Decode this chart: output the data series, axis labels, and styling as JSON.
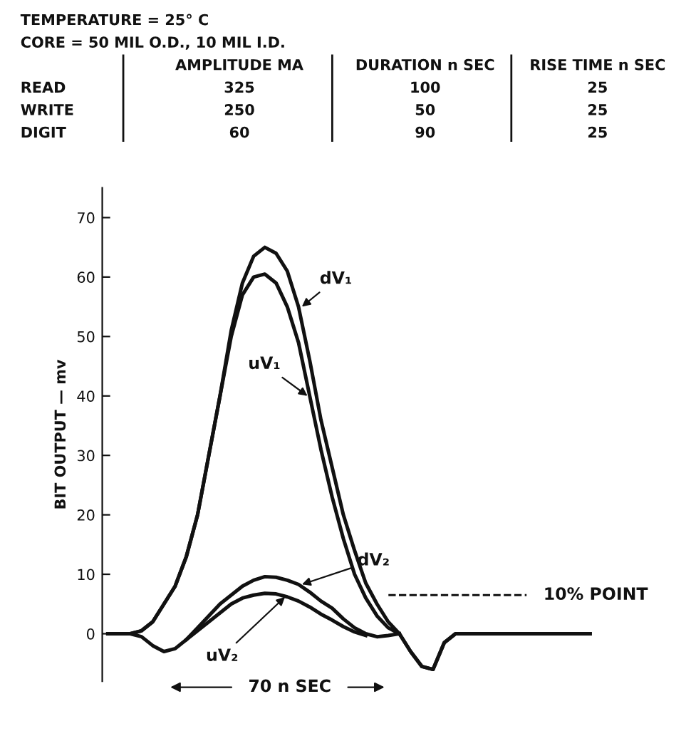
{
  "chart_data": [
    {
      "type": "other",
      "annotations": [
        "TEMPERATURE = 25° C",
        "CORE = 50 MIL O.D., 10 MIL I.D."
      ],
      "categories": [
        "READ",
        "WRITE",
        "DIGIT"
      ],
      "data_labels": true,
      "series": [
        {
          "name": "AMPLITUDE MA",
          "values": [
            325,
            250,
            60
          ]
        },
        {
          "name": "DURATION n SEC",
          "values": [
            100,
            50,
            90
          ]
        },
        {
          "name": "RISE TIME n SEC",
          "values": [
            25,
            25,
            25
          ]
        }
      ]
    },
    {
      "type": "line",
      "ylabel": "BIT OUTPUT — mv",
      "ylim": [
        -8,
        75
      ],
      "yticks": [
        0,
        10,
        20,
        30,
        40,
        50,
        60,
        70
      ],
      "tick_labels": "y",
      "grid": false,
      "legend": false,
      "marker": "none",
      "line_style": "solid",
      "annotations": [
        "70 n SEC"
      ],
      "ref_lines": [
        {
          "axis": "y",
          "value": 6.5,
          "label": "10% POINT",
          "line_style": "dashed",
          "color": "#111111"
        }
      ],
      "categories": [
        null,
        null,
        null,
        null,
        null,
        null,
        null,
        null,
        null,
        null,
        null,
        null,
        null,
        null,
        null,
        null,
        null,
        null,
        null,
        null,
        null,
        null,
        null,
        null,
        null,
        null,
        null,
        null,
        null,
        null,
        null,
        null,
        null,
        null,
        null,
        null,
        null,
        null,
        null,
        null,
        null,
        null,
        null,
        null
      ],
      "series": [
        {
          "name": "dV₁",
          "color": "#111111",
          "values": [
            0,
            0,
            0,
            0.5,
            2,
            5,
            8,
            13,
            20,
            30,
            40,
            51,
            59,
            63.5,
            65,
            64,
            61,
            55,
            46,
            36,
            28,
            20,
            14,
            8.5,
            5,
            2,
            0,
            -3,
            -5.5,
            -6,
            -1.5,
            0,
            0,
            0,
            0,
            0,
            0,
            0,
            0,
            0,
            0,
            0,
            0,
            0
          ]
        },
        {
          "name": "uV₁",
          "color": "#111111",
          "values": [
            0,
            0,
            0,
            0.5,
            2,
            5,
            8,
            13,
            20,
            30,
            40,
            50,
            57,
            60,
            60.5,
            59,
            55,
            49,
            40,
            31,
            23,
            16,
            10,
            6,
            3,
            1,
            0,
            -3,
            -5.5,
            -6,
            -1.5,
            0,
            0,
            0,
            0,
            0,
            0,
            0,
            0,
            0,
            0,
            0,
            0,
            0
          ]
        },
        {
          "name": "dV₂",
          "color": "#111111",
          "values": [
            0,
            0,
            0,
            -0.5,
            -2,
            -3,
            -2.5,
            -1,
            1,
            3,
            5,
            6.5,
            8,
            9,
            9.6,
            9.5,
            9,
            8.3,
            7,
            5.5,
            4.3,
            2.5,
            1,
            0,
            -0.5,
            -0.3,
            0,
            null,
            null,
            null,
            null,
            null,
            null,
            null,
            null,
            null,
            null,
            null,
            null,
            null,
            null,
            null,
            null,
            null
          ]
        },
        {
          "name": "uV₂",
          "color": "#111111",
          "values": [
            null,
            null,
            null,
            null,
            null,
            null,
            null,
            -1,
            0.5,
            2,
            3.5,
            5,
            6,
            6.5,
            6.8,
            6.7,
            6.2,
            5.5,
            4.5,
            3.3,
            2.3,
            1.2,
            0.3,
            -0.3,
            null,
            null,
            null,
            null,
            null,
            null,
            null,
            null,
            null,
            null,
            null,
            null,
            null,
            null,
            null,
            null,
            null,
            null,
            null,
            null
          ]
        }
      ]
    }
  ]
}
